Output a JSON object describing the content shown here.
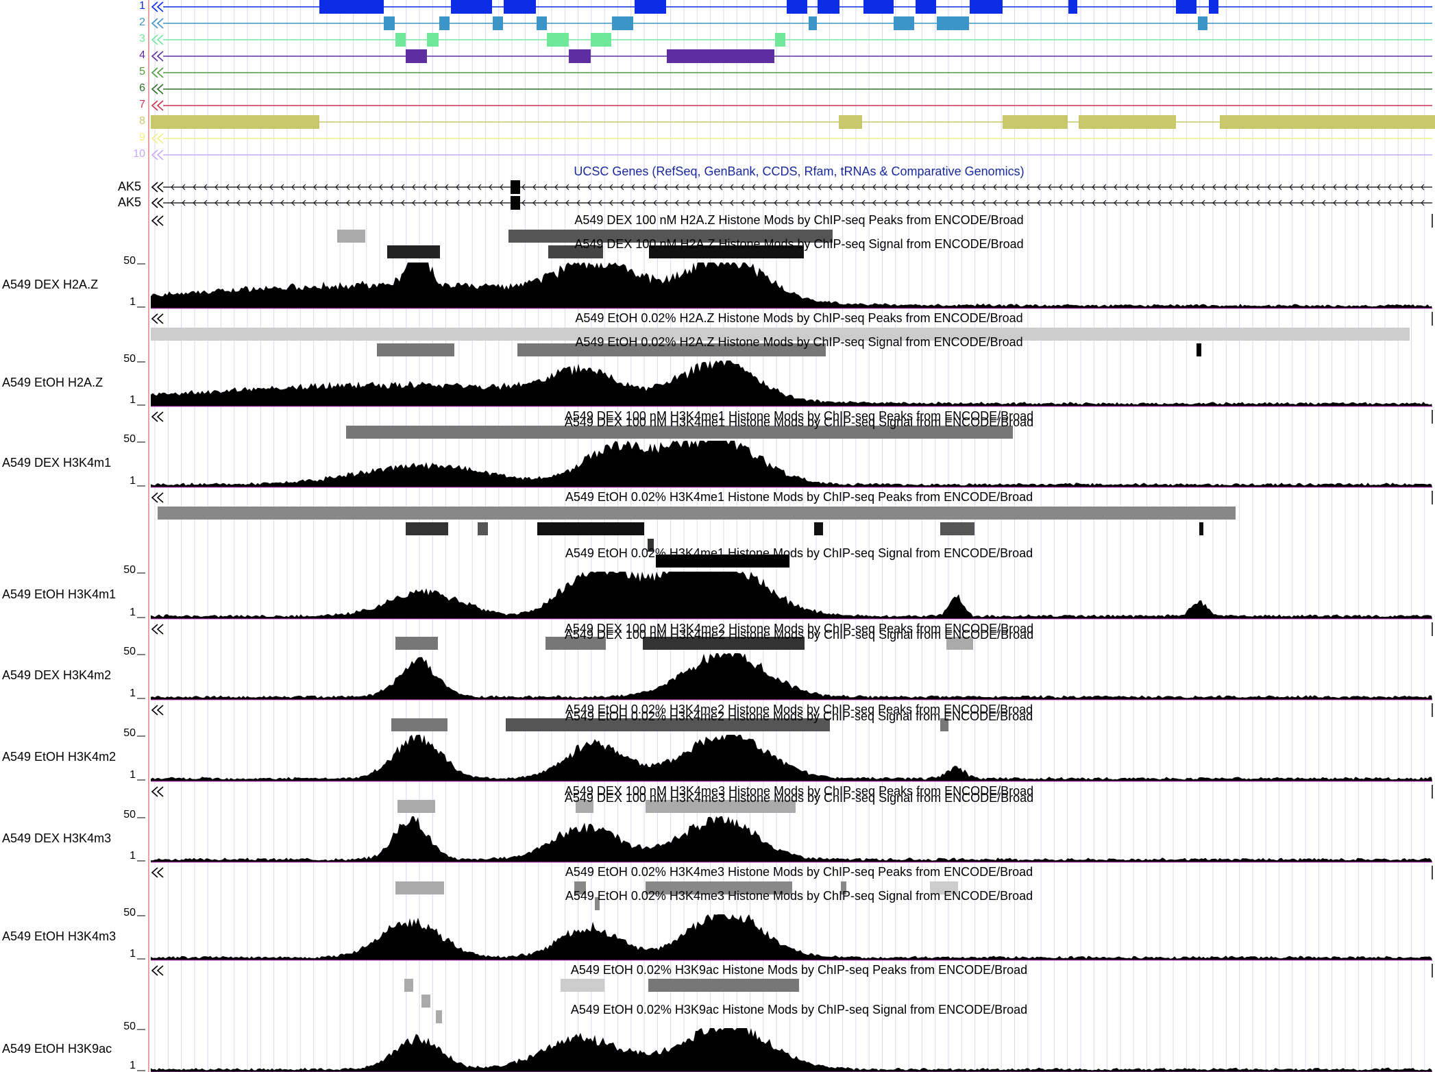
{
  "numbered_tracks": [
    {
      "num": "1",
      "color": "#0b2de6"
    },
    {
      "num": "2",
      "color": "#3b95c8"
    },
    {
      "num": "3",
      "color": "#6fe89a"
    },
    {
      "num": "4",
      "color": "#5e2ea0"
    },
    {
      "num": "5",
      "color": "#4e9a3a"
    },
    {
      "num": "6",
      "color": "#2e6e2a"
    },
    {
      "num": "7",
      "color": "#c8344e"
    },
    {
      "num": "8",
      "color": "#c8c86a"
    },
    {
      "num": "9",
      "color": "#f0f080"
    },
    {
      "num": "10",
      "color": "#c8a8f0"
    }
  ],
  "genes": {
    "title": "UCSC Genes (RefSeq, GenBank, CCDS, Rfam, tRNAs & Comparative Genomics)",
    "rows": [
      "AK5",
      "AK5"
    ]
  },
  "tracks": [
    {
      "label": "A549 DEX H2A.Z",
      "peaks_title": "A549 DEX 100 nM H2A.Z Histone Mods by ChIP-seq Peaks from ENCODE/Broad",
      "signal_title": "A549 DEX 100 nM H2A.Z Histone Mods by ChIP-seq Signal from ENCODE/Broad",
      "y_max": "50",
      "y_min": "1"
    },
    {
      "label": "A549 EtOH H2A.Z",
      "peaks_title": "A549 EtOH 0.02% H2A.Z Histone Mods by ChIP-seq Peaks from ENCODE/Broad",
      "signal_title": "A549 EtOH 0.02% H2A.Z Histone Mods by ChIP-seq Signal from ENCODE/Broad",
      "y_max": "50",
      "y_min": "1"
    },
    {
      "label": "A549 DEX H3K4m1",
      "peaks_title": "A549 DEX 100 nM H3K4me1 Histone Mods by ChIP-seq Peaks from ENCODE/Broad",
      "signal_title": "A549 DEX 100 nM H3K4me1 Histone Mods by ChIP-seq Signal from ENCODE/Broad",
      "y_max": "50",
      "y_min": "1"
    },
    {
      "label": "A549 EtOH H3K4m1",
      "peaks_title": "A549 EtOH 0.02% H3K4me1 Histone Mods by ChIP-seq Peaks from ENCODE/Broad",
      "signal_title": "A549 EtOH 0.02% H3K4me1 Histone Mods by ChIP-seq Signal from ENCODE/Broad",
      "y_max": "50",
      "y_min": "1"
    },
    {
      "label": "A549 DEX H3K4m2",
      "peaks_title": "A549 DEX 100 nM H3K4me2 Histone Mods by ChIP-seq Peaks from ENCODE/Broad",
      "signal_title": "A549 DEX 100 nM H3K4me2 Histone Mods by ChIP-seq Signal from ENCODE/Broad",
      "y_max": "50",
      "y_min": "1"
    },
    {
      "label": "A549 EtOH H3K4m2",
      "peaks_title": "A549 EtOH 0.02% H3K4me2 Histone Mods by ChIP-seq Peaks from ENCODE/Broad",
      "signal_title": "A549 EtOH 0.02% H3K4me2 Histone Mods by ChIP-seq Signal from ENCODE/Broad",
      "y_max": "50",
      "y_min": "1"
    },
    {
      "label": "A549 DEX H3K4m3",
      "peaks_title": "A549 DEX 100 nM H3K4me3 Histone Mods by ChIP-seq Peaks from ENCODE/Broad",
      "signal_title": "A549 DEX 100 nM H3K4me3 Histone Mods by ChIP-seq Signal from ENCODE/Broad",
      "y_max": "50",
      "y_min": "1"
    },
    {
      "label": "A549 EtOH H3K4m3",
      "peaks_title": "A549 EtOH 0.02% H3K4me3 Histone Mods by ChIP-seq Peaks from ENCODE/Broad",
      "signal_title": "A549 EtOH 0.02% H3K4me3 Histone Mods by ChIP-seq Signal from ENCODE/Broad",
      "y_max": "50",
      "y_min": "1"
    },
    {
      "label": "A549 EtOH H3K9ac",
      "peaks_title": "A549 EtOH 0.02% H3K9ac Histone Mods by ChIP-seq Peaks from ENCODE/Broad",
      "signal_title": "A549 EtOH 0.02% H3K9ac Histone Mods by ChIP-seq Signal from ENCODE/Broad",
      "y_max": "50",
      "y_min": "1"
    }
  ]
}
